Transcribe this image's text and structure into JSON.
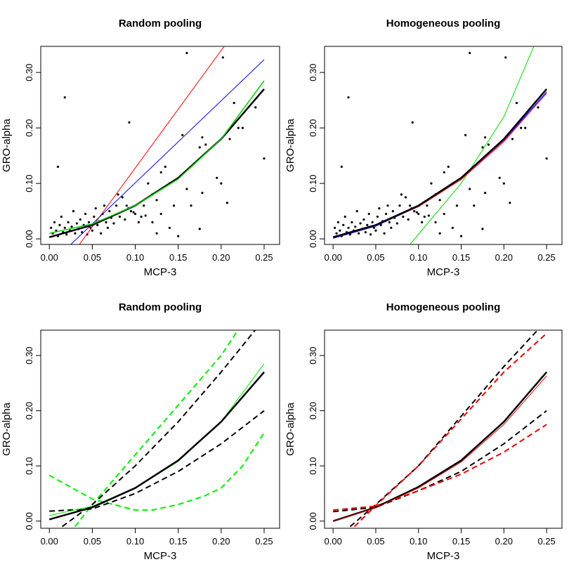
{
  "chart_data": [
    {
      "type": "scatter",
      "title": "Random pooling",
      "xlabel": "MCP-3",
      "ylabel": "GRO-alpha",
      "xlim": [
        -0.01,
        0.268
      ],
      "ylim": [
        -0.01,
        0.347
      ],
      "xticks": [
        {
          "value": 0,
          "label": "0.00"
        },
        0.05,
        {
          "value": 0.1,
          "label": "0.10"
        },
        0.15,
        {
          "value": 0.2,
          "label": "0.20"
        },
        0.25
      ],
      "yticks": [
        {
          "value": 0,
          "label": "0.00"
        },
        {
          "value": 0.1,
          "label": "0.10"
        },
        {
          "value": 0.2,
          "label": "0.20"
        },
        {
          "value": 0.3,
          "label": "0.30"
        }
      ],
      "points": {
        "color": "#000000",
        "x": [
          0.018,
          0.01,
          0.16,
          0.202,
          0.093,
          0.25,
          0.215,
          0.24,
          0.155,
          0.178,
          0.182,
          0.175,
          0.21,
          0.22,
          0.225,
          0.195,
          0.2,
          0.207,
          0.178,
          0.175,
          0.165,
          0.16,
          0.14,
          0.13,
          0.135,
          0.115,
          0.12,
          0.125,
          0.145,
          0.14,
          0.15,
          0.107,
          0.1,
          0.095,
          0.09,
          0.085,
          0.08,
          0.11,
          0.13,
          0.12,
          0.125,
          0.002,
          0.004,
          0.006,
          0.008,
          0.01,
          0.012,
          0.014,
          0.016,
          0.018,
          0.02,
          0.022,
          0.024,
          0.026,
          0.028,
          0.03,
          0.032,
          0.034,
          0.036,
          0.038,
          0.04,
          0.042,
          0.044,
          0.046,
          0.048,
          0.05,
          0.052,
          0.054,
          0.056,
          0.058,
          0.06,
          0.062,
          0.064,
          0.066,
          0.068,
          0.07,
          0.072,
          0.075,
          0.078,
          0.082,
          0.088,
          0.092,
          0.098,
          0.104,
          0.112
        ],
        "y": [
          0.255,
          0.13,
          0.335,
          0.327,
          0.21,
          0.145,
          0.245,
          0.237,
          0.187,
          0.183,
          0.17,
          0.165,
          0.18,
          0.2,
          0.2,
          0.11,
          0.1,
          0.065,
          0.083,
          0.018,
          0.06,
          0.09,
          0.1,
          0.12,
          0.13,
          0.1,
          0.08,
          0.07,
          0.06,
          0.02,
          0.005,
          0.04,
          0.045,
          0.05,
          0.06,
          0.075,
          0.08,
          0.06,
          0.045,
          0.03,
          0.01,
          0.02,
          0.01,
          0.03,
          0.015,
          0.005,
          0.025,
          0.04,
          0.012,
          0.02,
          0.008,
          0.03,
          0.015,
          0.022,
          0.05,
          0.01,
          0.028,
          0.018,
          0.035,
          0.012,
          0.025,
          0.045,
          0.008,
          0.03,
          0.02,
          0.015,
          0.04,
          0.055,
          0.025,
          0.032,
          0.01,
          0.045,
          0.06,
          0.03,
          0.02,
          0.05,
          0.038,
          0.028,
          0.06,
          0.04,
          0.035,
          0.055,
          0.048,
          0.03,
          0.042
        ]
      },
      "lines": [
        {
          "color": "#ff0000",
          "width": 1,
          "x": [
            0.035,
            0.205
          ],
          "values": [
            -0.01,
            0.35
          ]
        },
        {
          "color": "#0000ff",
          "width": 1,
          "x": [
            0.025,
            0.25
          ],
          "values": [
            -0.01,
            0.323
          ]
        },
        {
          "color": "#000000",
          "width": 2.5,
          "x": [
            0,
            0.05,
            0.1,
            0.15,
            0.2,
            0.25
          ],
          "values": [
            0.003,
            0.025,
            0.06,
            0.11,
            0.18,
            0.27
          ]
        },
        {
          "color": "#00cc00",
          "width": 1.5,
          "x": [
            0,
            0.05,
            0.1,
            0.15,
            0.2,
            0.25
          ],
          "values": [
            0.01,
            0.027,
            0.06,
            0.108,
            0.18,
            0.285
          ]
        }
      ]
    },
    {
      "type": "scatter",
      "title": "Homogeneous pooling",
      "xlabel": "MCP-3",
      "ylabel": "GRO-alpha",
      "xlim": [
        -0.01,
        0.268
      ],
      "ylim": [
        -0.01,
        0.347
      ],
      "xticks": [
        {
          "value": 0,
          "label": "0.00"
        },
        0.05,
        {
          "value": 0.1,
          "label": "0.10"
        },
        0.15,
        {
          "value": 0.2,
          "label": "0.20"
        },
        0.25
      ],
      "yticks": [
        {
          "value": 0,
          "label": "0.00"
        },
        {
          "value": 0.1,
          "label": "0.10"
        },
        {
          "value": 0.2,
          "label": "0.20"
        },
        {
          "value": 0.3,
          "label": "0.30"
        }
      ],
      "points": {
        "color": "#000000",
        "x": [
          0.018,
          0.01,
          0.16,
          0.202,
          0.093,
          0.25,
          0.215,
          0.24,
          0.155,
          0.178,
          0.182,
          0.175,
          0.21,
          0.22,
          0.225,
          0.195,
          0.2,
          0.207,
          0.178,
          0.175,
          0.165,
          0.16,
          0.14,
          0.13,
          0.135,
          0.115,
          0.12,
          0.125,
          0.145,
          0.14,
          0.15,
          0.107,
          0.1,
          0.095,
          0.09,
          0.085,
          0.08,
          0.11,
          0.13,
          0.12,
          0.125,
          0.002,
          0.004,
          0.006,
          0.008,
          0.01,
          0.012,
          0.014,
          0.016,
          0.018,
          0.02,
          0.022,
          0.024,
          0.026,
          0.028,
          0.03,
          0.032,
          0.034,
          0.036,
          0.038,
          0.04,
          0.042,
          0.044,
          0.046,
          0.048,
          0.05,
          0.052,
          0.054,
          0.056,
          0.058,
          0.06,
          0.062,
          0.064,
          0.066,
          0.068,
          0.07,
          0.072,
          0.075,
          0.078,
          0.082,
          0.088,
          0.092,
          0.098,
          0.104,
          0.112
        ],
        "y": [
          0.255,
          0.13,
          0.335,
          0.327,
          0.21,
          0.145,
          0.245,
          0.237,
          0.187,
          0.183,
          0.17,
          0.165,
          0.18,
          0.2,
          0.2,
          0.11,
          0.1,
          0.065,
          0.083,
          0.018,
          0.06,
          0.09,
          0.1,
          0.12,
          0.13,
          0.1,
          0.08,
          0.07,
          0.06,
          0.02,
          0.005,
          0.04,
          0.045,
          0.05,
          0.06,
          0.075,
          0.08,
          0.06,
          0.045,
          0.03,
          0.01,
          0.02,
          0.01,
          0.03,
          0.015,
          0.005,
          0.025,
          0.04,
          0.012,
          0.02,
          0.008,
          0.03,
          0.015,
          0.022,
          0.05,
          0.01,
          0.028,
          0.018,
          0.035,
          0.012,
          0.025,
          0.045,
          0.008,
          0.03,
          0.02,
          0.015,
          0.04,
          0.055,
          0.025,
          0.032,
          0.01,
          0.045,
          0.06,
          0.03,
          0.02,
          0.05,
          0.038,
          0.028,
          0.06,
          0.04,
          0.035,
          0.055,
          0.048,
          0.03,
          0.042
        ]
      },
      "lines": [
        {
          "color": "#00dd00",
          "width": 1,
          "x": [
            0.09,
            0.15,
            0.2,
            0.235
          ],
          "values": [
            -0.01,
            0.1,
            0.22,
            0.347
          ]
        },
        {
          "color": "#ff0000",
          "width": 1,
          "x": [
            0,
            0.05,
            0.1,
            0.15,
            0.2,
            0.25
          ],
          "values": [
            0.003,
            0.024,
            0.058,
            0.107,
            0.175,
            0.263
          ]
        },
        {
          "color": "#0000ff",
          "width": 1,
          "x": [
            0,
            0.05,
            0.1,
            0.15,
            0.2,
            0.25
          ],
          "values": [
            0.001,
            0.023,
            0.059,
            0.109,
            0.178,
            0.265
          ]
        },
        {
          "color": "#a020f0",
          "width": 1,
          "x": [
            0,
            0.05,
            0.1,
            0.15,
            0.2,
            0.25
          ],
          "values": [
            0.004,
            0.026,
            0.061,
            0.109,
            0.177,
            0.262
          ]
        },
        {
          "color": "#000000",
          "width": 2.5,
          "x": [
            0,
            0.05,
            0.1,
            0.15,
            0.2,
            0.25
          ],
          "values": [
            0.003,
            0.025,
            0.06,
            0.11,
            0.18,
            0.27
          ]
        }
      ]
    },
    {
      "type": "line",
      "title": "Random pooling",
      "xlabel": "MCP-3",
      "ylabel": "GRO-alpha",
      "xlim": [
        -0.01,
        0.268
      ],
      "ylim": [
        -0.013,
        0.346
      ],
      "xticks": [
        {
          "value": 0,
          "label": "0.00"
        },
        0.05,
        {
          "value": 0.1,
          "label": "0.10"
        },
        0.15,
        {
          "value": 0.2,
          "label": "0.20"
        },
        0.25
      ],
      "yticks": [
        {
          "value": 0,
          "label": "0.00"
        },
        {
          "value": 0.1,
          "label": "0.10"
        },
        {
          "value": 0.2,
          "label": "0.20"
        },
        {
          "value": 0.3,
          "label": "0.30"
        }
      ],
      "lines": [
        {
          "color": "#00ee00",
          "width": 2,
          "dash": true,
          "x": [
            0.03,
            0.05,
            0.1,
            0.15,
            0.2,
            0.22
          ],
          "values": [
            -0.01,
            0.03,
            0.12,
            0.21,
            0.3,
            0.347
          ]
        },
        {
          "color": "#00ee00",
          "width": 2,
          "dash": true,
          "x": [
            0,
            0.05,
            0.1,
            0.12,
            0.15,
            0.18,
            0.2,
            0.225,
            0.25
          ],
          "values": [
            0.083,
            0.04,
            0.02,
            0.02,
            0.03,
            0.045,
            0.06,
            0.1,
            0.16
          ]
        },
        {
          "color": "#000000",
          "width": 2,
          "dash": true,
          "x": [
            0.015,
            0.05,
            0.1,
            0.15,
            0.2,
            0.24
          ],
          "values": [
            -0.01,
            0.03,
            0.1,
            0.18,
            0.27,
            0.347
          ]
        },
        {
          "color": "#000000",
          "width": 2,
          "dash": true,
          "x": [
            0,
            0.05,
            0.1,
            0.15,
            0.2,
            0.25
          ],
          "values": [
            0.018,
            0.022,
            0.05,
            0.09,
            0.14,
            0.2
          ]
        },
        {
          "color": "#00ee00",
          "width": 1,
          "x": [
            0,
            0.05,
            0.1,
            0.15,
            0.2,
            0.25
          ],
          "values": [
            0.01,
            0.027,
            0.06,
            0.108,
            0.18,
            0.285
          ]
        },
        {
          "color": "#000000",
          "width": 2.5,
          "x": [
            0,
            0.05,
            0.1,
            0.15,
            0.2,
            0.25
          ],
          "values": [
            0.003,
            0.025,
            0.06,
            0.11,
            0.18,
            0.27
          ]
        }
      ]
    },
    {
      "type": "line",
      "title": "Homogeneous pooling",
      "xlabel": "MCP-3",
      "ylabel": "GRO-alpha",
      "xlim": [
        -0.01,
        0.268
      ],
      "ylim": [
        -0.013,
        0.346
      ],
      "xticks": [
        {
          "value": 0,
          "label": "0.00"
        },
        0.05,
        {
          "value": 0.1,
          "label": "0.10"
        },
        0.15,
        {
          "value": 0.2,
          "label": "0.20"
        },
        0.25
      ],
      "yticks": [
        {
          "value": 0,
          "label": "0.00"
        },
        {
          "value": 0.1,
          "label": "0.10"
        },
        {
          "value": 0.2,
          "label": "0.20"
        },
        {
          "value": 0.3,
          "label": "0.30"
        }
      ],
      "lines": [
        {
          "color": "#000000",
          "width": 2,
          "dash": true,
          "x": [
            0.02,
            0.05,
            0.1,
            0.15,
            0.2,
            0.24
          ],
          "values": [
            -0.01,
            0.03,
            0.1,
            0.19,
            0.28,
            0.347
          ]
        },
        {
          "color": "#000000",
          "width": 2,
          "dash": true,
          "x": [
            0,
            0.05,
            0.1,
            0.15,
            0.2,
            0.25
          ],
          "values": [
            0.017,
            0.025,
            0.055,
            0.09,
            0.14,
            0.2
          ]
        },
        {
          "color": "#ee0000",
          "width": 2,
          "dash": true,
          "x": [
            0.025,
            0.05,
            0.1,
            0.15,
            0.2,
            0.25
          ],
          "values": [
            -0.01,
            0.028,
            0.1,
            0.185,
            0.27,
            0.34
          ]
        },
        {
          "color": "#ee0000",
          "width": 2,
          "dash": true,
          "x": [
            0,
            0.05,
            0.1,
            0.15,
            0.2,
            0.25
          ],
          "values": [
            0.02,
            0.027,
            0.055,
            0.085,
            0.125,
            0.175
          ]
        },
        {
          "color": "#000000",
          "width": 2.5,
          "x": [
            0,
            0.05,
            0.1,
            0.15,
            0.2,
            0.25
          ],
          "values": [
            0.0,
            0.025,
            0.062,
            0.11,
            0.18,
            0.27
          ]
        },
        {
          "color": "#ee0000",
          "width": 1,
          "x": [
            0,
            0.05,
            0.1,
            0.15,
            0.2,
            0.25
          ],
          "values": [
            0.0,
            0.024,
            0.06,
            0.107,
            0.175,
            0.263
          ]
        }
      ]
    }
  ]
}
